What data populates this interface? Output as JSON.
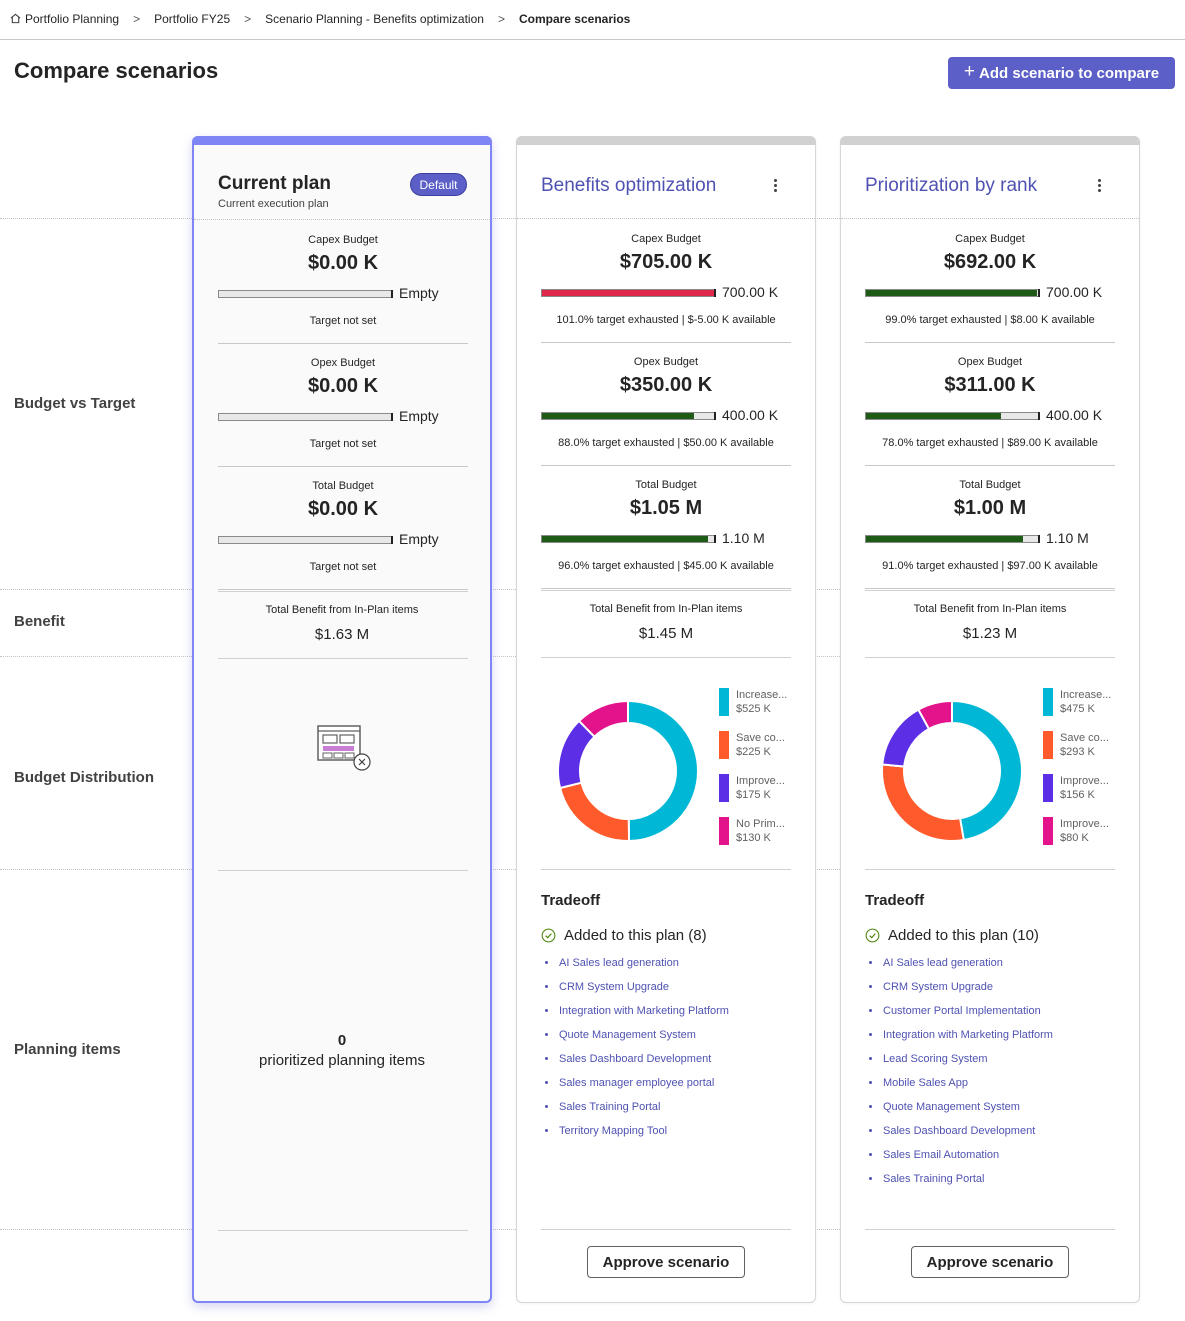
{
  "breadcrumb": [
    "Portfolio Planning",
    "Portfolio FY25",
    "Scenario Planning - Benefits optimization",
    "Compare scenarios"
  ],
  "page": {
    "title": "Compare scenarios",
    "add_button": "Add scenario to compare"
  },
  "row_labels": {
    "budget": "Budget vs Target",
    "benefit": "Benefit",
    "distribution": "Budget Distribution",
    "planning": "Planning items"
  },
  "cards": [
    {
      "title": "Current plan",
      "subtitle": "Current execution plan",
      "badge": "Default",
      "budgets": [
        {
          "label": "Capex Budget",
          "value": "$0.00 K",
          "target": "Empty",
          "fill_pct": 0,
          "note": "Target not set",
          "fill_color": ""
        },
        {
          "label": "Opex Budget",
          "value": "$0.00 K",
          "target": "Empty",
          "fill_pct": 0,
          "note": "Target not set",
          "fill_color": ""
        },
        {
          "label": "Total Budget",
          "value": "$0.00 K",
          "target": "Empty",
          "fill_pct": 0,
          "note": "Target not set",
          "fill_color": ""
        }
      ],
      "benefit_label": "Total Benefit from In-Plan items",
      "benefit_value": "$1.63 M",
      "planning_count": "0",
      "planning_label": "prioritized planning items"
    },
    {
      "title": "Benefits optimization",
      "budgets": [
        {
          "label": "Capex Budget",
          "value": "$705.00 K",
          "target": "700.00 K",
          "fill_pct": 100,
          "note": "101.0% target exhausted | $-5.00 K available",
          "fill_color": "#e0284a"
        },
        {
          "label": "Opex Budget",
          "value": "$350.00 K",
          "target": "400.00 K",
          "fill_pct": 88,
          "note": "88.0% target exhausted | $50.00 K available",
          "fill_color": "#1e5b17"
        },
        {
          "label": "Total Budget",
          "value": "$1.05 M",
          "target": "1.10 M",
          "fill_pct": 96,
          "note": "96.0% target exhausted | $45.00 K available",
          "fill_color": "#1e5b17"
        }
      ],
      "benefit_label": "Total Benefit from In-Plan items",
      "benefit_value": "$1.45 M",
      "distribution": [
        {
          "name": "Increase...",
          "value": "$525 K",
          "amount": 525,
          "color": "#00b7d5"
        },
        {
          "name": "Save co...",
          "value": "$225 K",
          "amount": 225,
          "color": "#ff5a2b"
        },
        {
          "name": "Improve...",
          "value": "$175 K",
          "amount": 175,
          "color": "#5c2ee5"
        },
        {
          "name": "No Prim...",
          "value": "$130 K",
          "amount": 130,
          "color": "#e3138c"
        }
      ],
      "tradeoff_title": "Tradeoff",
      "added_label": "Added to this plan (8)",
      "items": [
        "AI Sales lead generation",
        "CRM System Upgrade",
        "Integration with Marketing Platform",
        "Quote Management System",
        "Sales Dashboard Development",
        "Sales manager employee portal",
        "Sales Training Portal",
        "Territory Mapping Tool"
      ],
      "approve": "Approve scenario"
    },
    {
      "title": "Prioritization by rank",
      "budgets": [
        {
          "label": "Capex Budget",
          "value": "$692.00 K",
          "target": "700.00 K",
          "fill_pct": 99,
          "note": "99.0% target exhausted | $8.00 K available",
          "fill_color": "#1e5b17"
        },
        {
          "label": "Opex Budget",
          "value": "$311.00 K",
          "target": "400.00 K",
          "fill_pct": 78,
          "note": "78.0% target exhausted | $89.00 K available",
          "fill_color": "#1e5b17"
        },
        {
          "label": "Total Budget",
          "value": "$1.00 M",
          "target": "1.10 M",
          "fill_pct": 91,
          "note": "91.0% target exhausted | $97.00 K available",
          "fill_color": "#1e5b17"
        }
      ],
      "benefit_label": "Total Benefit from In-Plan items",
      "benefit_value": "$1.23 M",
      "distribution": [
        {
          "name": "Increase...",
          "value": "$475 K",
          "amount": 475,
          "color": "#00b7d5"
        },
        {
          "name": "Save co...",
          "value": "$293 K",
          "amount": 293,
          "color": "#ff5a2b"
        },
        {
          "name": "Improve...",
          "value": "$156 K",
          "amount": 156,
          "color": "#5c2ee5"
        },
        {
          "name": "Improve...",
          "value": "$80 K",
          "amount": 80,
          "color": "#e3138c"
        }
      ],
      "tradeoff_title": "Tradeoff",
      "added_label": "Added to this plan (10)",
      "items": [
        "AI Sales lead generation",
        "CRM System Upgrade",
        "Customer Portal Implementation",
        "Integration with Marketing Platform",
        "Lead Scoring System",
        "Mobile Sales App",
        "Quote Management System",
        "Sales Dashboard Development",
        "Sales Email Automation",
        "Sales Training Portal"
      ],
      "approve": "Approve scenario"
    }
  ]
}
